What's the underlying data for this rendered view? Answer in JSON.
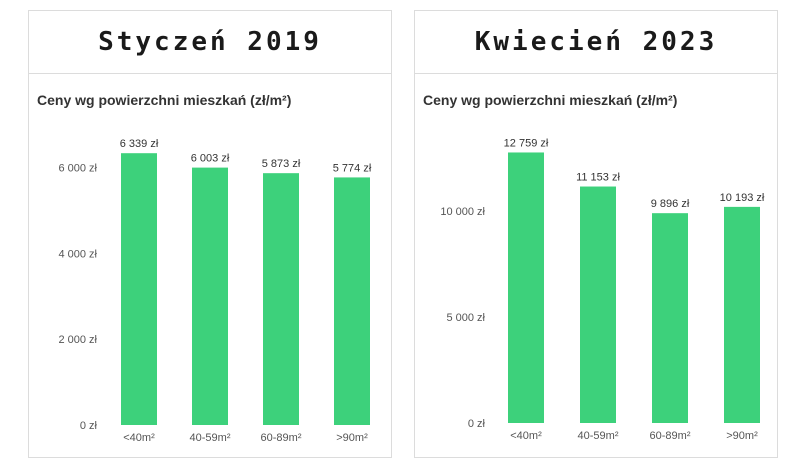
{
  "colors": {
    "bar": "#3dd17b"
  },
  "panels": [
    {
      "heading": "Styczeń 2019"
    },
    {
      "heading": "Kwiecień 2023"
    }
  ],
  "chart_data": [
    {
      "type": "bar",
      "title": "Ceny wg powierzchni mieszkań (zł/m²)",
      "categories": [
        "<40m²",
        "40-59m²",
        "60-89m²",
        ">90m²"
      ],
      "values": [
        6339,
        6003,
        5873,
        5774
      ],
      "value_labels": [
        "6 339 zł",
        "6 003 zł",
        "5 873 zł",
        "5 774 zł"
      ],
      "yticks": [
        0,
        2000,
        4000,
        6000
      ],
      "ytick_labels": [
        "0 zł",
        "2 000 zł",
        "4 000 zł",
        "6 000 zł"
      ],
      "ylim": [
        0,
        6600
      ],
      "grid": false,
      "legend": "none"
    },
    {
      "type": "bar",
      "title": "Ceny wg powierzchni mieszkań (zł/m²)",
      "categories": [
        "<40m²",
        "40-59m²",
        "60-89m²",
        ">90m²"
      ],
      "values": [
        12759,
        11153,
        9896,
        10193
      ],
      "value_labels": [
        "12 759 zł",
        "11 153 zł",
        "9 896 zł",
        "10 193 zł"
      ],
      "yticks": [
        0,
        5000,
        10000
      ],
      "ytick_labels": [
        "0 zł",
        "5 000 zł",
        "10 000 zł"
      ],
      "ylim": [
        0,
        13300
      ],
      "grid": false,
      "legend": "none"
    }
  ]
}
